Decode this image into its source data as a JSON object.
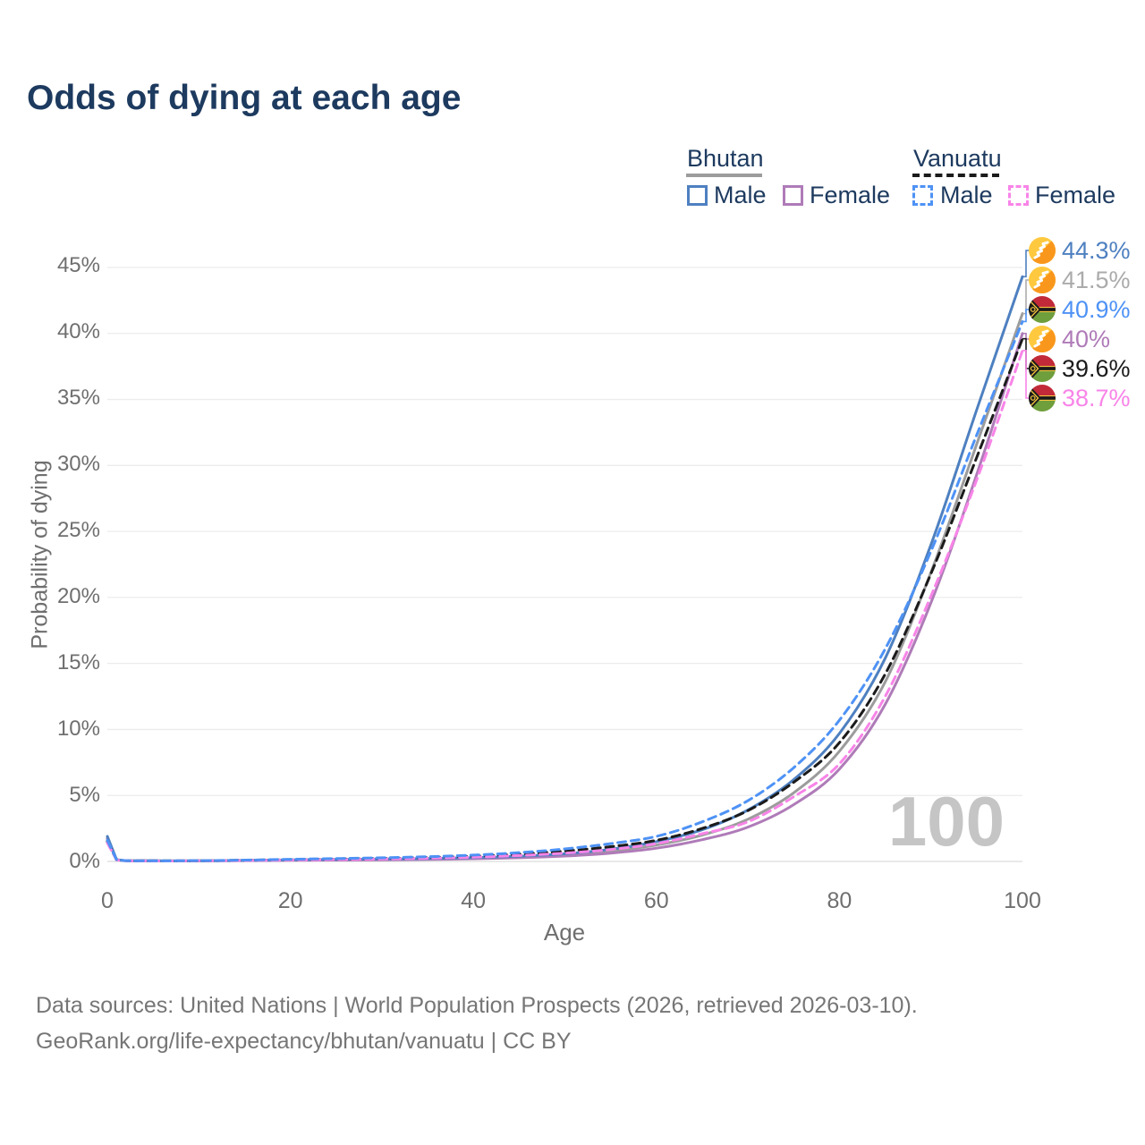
{
  "title": "Odds of dying at each age",
  "watermark": "100",
  "colors": {
    "bhutan_male": "#4E80C0",
    "bhutan_female": "#AF7BB8",
    "bhutan_both": "#9C9C9C",
    "vanuatu_male": "#4E92F5",
    "vanuatu_female": "#F884E8",
    "vanuatu_both": "#1B1B1B",
    "grid": "#ECECEC",
    "baseline": "#DCDCDC",
    "title_text": "#1D3A5F",
    "tick_text": "#6F6F6F"
  },
  "legend": {
    "groups": [
      {
        "name": "Bhutan",
        "line_style": "solid",
        "underline_color": "#9C9C9C",
        "items": [
          {
            "label": "Male",
            "color": "#4E80C0"
          },
          {
            "label": "Female",
            "color": "#AF7BB8"
          }
        ]
      },
      {
        "name": "Vanuatu",
        "line_style": "dashed",
        "underline_color": "#1B1B1B",
        "items": [
          {
            "label": "Male",
            "color": "#4E92F5"
          },
          {
            "label": "Female",
            "color": "#F884E8"
          }
        ]
      }
    ]
  },
  "axes": {
    "y_label": "Probability of dying",
    "x_label": "Age",
    "y_ticks": [
      "45%",
      "40%",
      "35%",
      "30%",
      "25%",
      "20%",
      "15%",
      "10%",
      "5%",
      "0%"
    ],
    "x_ticks": [
      "0",
      "20",
      "40",
      "60",
      "80",
      "100"
    ]
  },
  "end_labels": [
    {
      "series": "Bhutan Male",
      "flag": "bhutan",
      "value": 44.3,
      "value_text": "44.3%",
      "color": "#4E80C0"
    },
    {
      "series": "Bhutan Both sexes",
      "flag": "bhutan",
      "value": 41.5,
      "value_text": "41.5%",
      "color": "#ABABAB"
    },
    {
      "series": "Vanuatu Male",
      "flag": "vanuatu",
      "value": 40.9,
      "value_text": "40.9%",
      "color": "#4E92F5"
    },
    {
      "series": "Bhutan Female",
      "flag": "bhutan",
      "value": 40.0,
      "value_text": "40%",
      "color": "#AF7BB8"
    },
    {
      "series": "Vanuatu Both sexes",
      "flag": "vanuatu",
      "value": 39.6,
      "value_text": "39.6%",
      "color": "#1B1B1B"
    },
    {
      "series": "Vanuatu Female",
      "flag": "vanuatu",
      "value": 38.7,
      "value_text": "38.7%",
      "color": "#F884E8"
    }
  ],
  "footer": {
    "line1": "Data sources: United Nations | World Population Prospects (2026, retrieved 2026-03-10).",
    "line2": "GeoRank.org/life-expectancy/bhutan/vanuatu | CC BY"
  },
  "chart_data": {
    "type": "line",
    "title": "Odds of dying at each age",
    "xlabel": "Age",
    "ylabel": "Probability of dying",
    "unit": "%",
    "xlim": [
      0,
      100
    ],
    "ylim": [
      0,
      45
    ],
    "grid": "horizontal",
    "legend_position": "top-right",
    "x": [
      0,
      1,
      5,
      10,
      15,
      20,
      25,
      30,
      35,
      40,
      45,
      50,
      55,
      60,
      65,
      70,
      75,
      80,
      85,
      90,
      95,
      100
    ],
    "series": [
      {
        "name": "Bhutan Both sexes",
        "country": "Bhutan",
        "sex": "both",
        "style": "solid",
        "color": "#9C9C9C",
        "values": [
          1.8,
          0.14,
          0.05,
          0.05,
          0.07,
          0.1,
          0.13,
          0.15,
          0.19,
          0.25,
          0.34,
          0.5,
          0.78,
          1.25,
          2.0,
          3.2,
          5.2,
          8.35,
          13.6,
          21.9,
          31.6,
          41.5
        ]
      },
      {
        "name": "Bhutan Female",
        "country": "Bhutan",
        "sex": "female",
        "style": "solid",
        "color": "#AF7BB8",
        "values": [
          1.7,
          0.13,
          0.04,
          0.04,
          0.06,
          0.08,
          0.1,
          0.12,
          0.15,
          0.2,
          0.28,
          0.41,
          0.63,
          1.0,
          1.65,
          2.6,
          4.3,
          7.0,
          11.9,
          19.6,
          29.3,
          40.0
        ]
      },
      {
        "name": "Bhutan Male",
        "country": "Bhutan",
        "sex": "male",
        "style": "solid",
        "color": "#4E80C0",
        "values": [
          1.9,
          0.15,
          0.05,
          0.05,
          0.08,
          0.12,
          0.15,
          0.18,
          0.22,
          0.29,
          0.4,
          0.58,
          0.92,
          1.5,
          2.4,
          3.9,
          6.2,
          9.7,
          15.4,
          24.0,
          34.2,
          44.3
        ]
      },
      {
        "name": "Vanuatu Both sexes",
        "country": "Vanuatu",
        "sex": "both",
        "style": "dashed",
        "color": "#1B1B1B",
        "values": [
          1.5,
          0.13,
          0.05,
          0.05,
          0.09,
          0.13,
          0.18,
          0.23,
          0.3,
          0.4,
          0.55,
          0.78,
          1.12,
          1.6,
          2.5,
          3.85,
          6.0,
          9.0,
          14.2,
          21.8,
          30.6,
          39.6
        ]
      },
      {
        "name": "Vanuatu Female",
        "country": "Vanuatu",
        "sex": "female",
        "style": "dashed",
        "color": "#F884E8",
        "values": [
          1.4,
          0.12,
          0.04,
          0.05,
          0.07,
          0.11,
          0.14,
          0.18,
          0.24,
          0.32,
          0.45,
          0.63,
          0.9,
          1.35,
          2.1,
          3.0,
          4.9,
          7.4,
          12.5,
          20.1,
          28.9,
          38.7
        ]
      },
      {
        "name": "Vanuatu Male",
        "country": "Vanuatu",
        "sex": "male",
        "style": "dashed",
        "color": "#4E92F5",
        "values": [
          1.6,
          0.14,
          0.05,
          0.06,
          0.1,
          0.16,
          0.22,
          0.28,
          0.36,
          0.48,
          0.67,
          0.95,
          1.35,
          1.9,
          3.0,
          4.6,
          7.1,
          10.7,
          16.1,
          23.5,
          32.3,
          40.9
        ]
      }
    ]
  }
}
